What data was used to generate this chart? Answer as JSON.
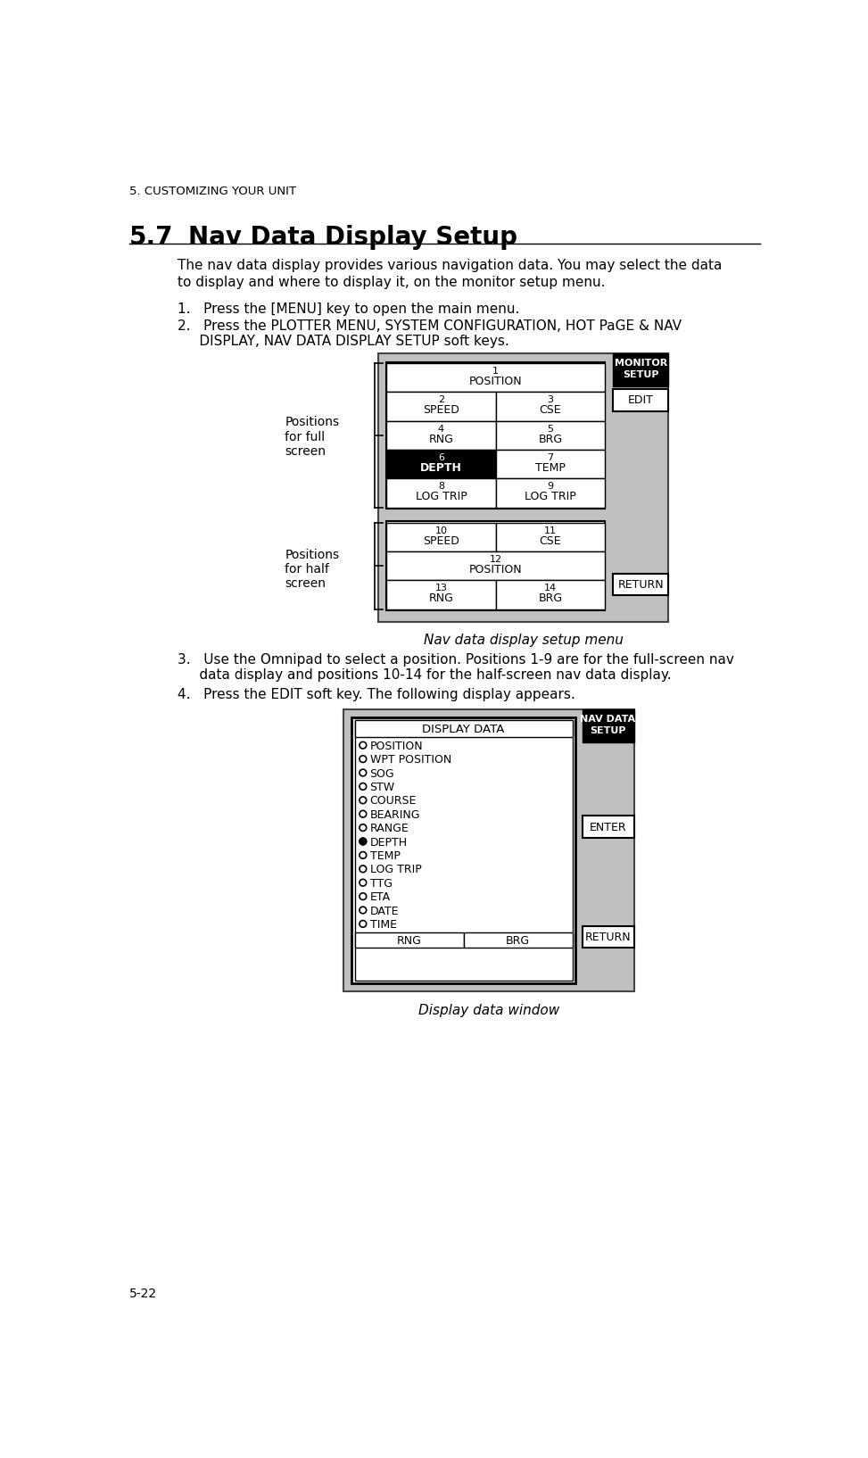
{
  "page_header": "5. CUSTOMIZING YOUR UNIT",
  "section_number": "5.7",
  "section_title": "Nav Data Display Setup",
  "intro_line1": "The nav data display provides various navigation data. You may select the data",
  "intro_line2": "to display and where to display it, on the monitor setup menu.",
  "step1": "1.   Press the [MENU] key to open the main menu.",
  "step2_line1": "2.   Press the PLOTTER MENU, SYSTEM CONFIGURATION, HOT PaGE & NAV",
  "step2_line2": "     DISPLAY, NAV DATA DISPLAY SETUP soft keys.",
  "diagram1_caption": "Nav data display setup menu",
  "step3_line1": "3.   Use the Omnipad to select a position. Positions 1-9 are for the full-screen nav",
  "step3_line2": "     data display and positions 10-14 for the half-screen nav data display.",
  "step4": "4.   Press the EDIT soft key. The following display appears.",
  "diagram2_caption": "Display data window",
  "page_footer": "5-22",
  "display_data_items": [
    "POSITION",
    "WPT POSITION",
    "SOG",
    "STW",
    "COURSE",
    "BEARING",
    "RANGE",
    "DEPTH",
    "TEMP",
    "LOG TRIP",
    "TTG",
    "ETA",
    "DATE",
    "TIME"
  ],
  "display_data_selected_index": 7,
  "bg_color": "#ffffff",
  "panel_bg": "#c0c0c0"
}
